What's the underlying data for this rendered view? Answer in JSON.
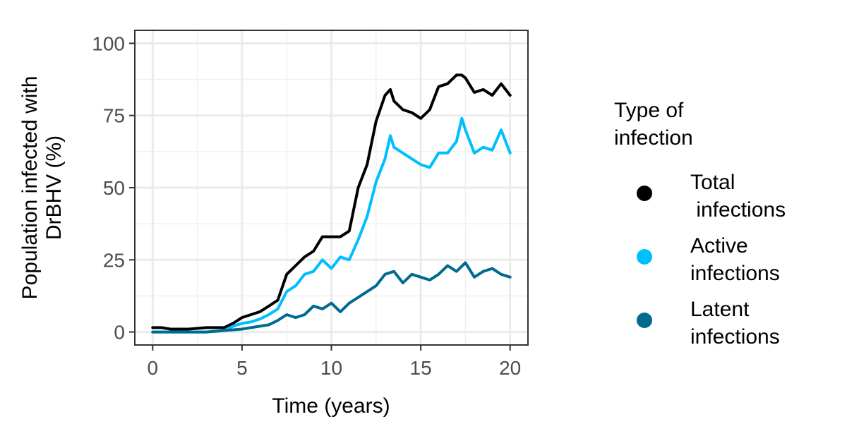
{
  "chart_data": {
    "type": "line",
    "xlabel": "Time (years)",
    "ylabel_lines": [
      "Population infected with",
      "DrBHV (%)"
    ],
    "xlim": [
      -1,
      21
    ],
    "ylim": [
      -4.5,
      104.5
    ],
    "x_ticks": [
      0,
      5,
      10,
      15,
      20
    ],
    "y_ticks": [
      0,
      25,
      50,
      75,
      100
    ],
    "x_tick_labels": [
      "0",
      "5",
      "10",
      "15",
      "20"
    ],
    "y_tick_labels": [
      "0",
      "25",
      "50",
      "75",
      "100"
    ],
    "grid": true,
    "legend": {
      "title_lines": [
        "Type of",
        "infection"
      ],
      "placement": "right"
    },
    "series": [
      {
        "key": "total",
        "label_lines": [
          "Total",
          " infections"
        ],
        "color": "#000000",
        "points": [
          [
            0,
            1.5
          ],
          [
            0.5,
            1.5
          ],
          [
            1,
            1
          ],
          [
            2,
            1
          ],
          [
            3,
            1.5
          ],
          [
            4,
            1.5
          ],
          [
            4.5,
            3
          ],
          [
            5,
            5
          ],
          [
            5.5,
            6
          ],
          [
            6,
            7
          ],
          [
            6.5,
            9
          ],
          [
            7,
            11
          ],
          [
            7.5,
            20
          ],
          [
            8,
            23
          ],
          [
            8.5,
            26
          ],
          [
            9,
            28
          ],
          [
            9.5,
            33
          ],
          [
            10,
            33
          ],
          [
            10.5,
            33
          ],
          [
            11,
            35
          ],
          [
            11.5,
            50
          ],
          [
            12,
            58
          ],
          [
            12.5,
            73
          ],
          [
            13,
            82
          ],
          [
            13.3,
            84
          ],
          [
            13.5,
            80
          ],
          [
            14,
            77
          ],
          [
            14.5,
            76
          ],
          [
            15,
            74
          ],
          [
            15.5,
            77
          ],
          [
            16,
            85
          ],
          [
            16.5,
            86
          ],
          [
            17,
            89
          ],
          [
            17.3,
            89
          ],
          [
            17.5,
            88
          ],
          [
            18,
            83
          ],
          [
            18.5,
            84
          ],
          [
            19,
            82
          ],
          [
            19.5,
            86
          ],
          [
            20,
            82
          ]
        ]
      },
      {
        "key": "active",
        "label_lines": [
          "Active",
          "infections"
        ],
        "color": "#00bfff",
        "points": [
          [
            0,
            0
          ],
          [
            1,
            0
          ],
          [
            2,
            0
          ],
          [
            3,
            0
          ],
          [
            4,
            0.5
          ],
          [
            4.5,
            2
          ],
          [
            5,
            3
          ],
          [
            5.5,
            3.5
          ],
          [
            6,
            4.5
          ],
          [
            6.5,
            6
          ],
          [
            7,
            8
          ],
          [
            7.5,
            14
          ],
          [
            8,
            16
          ],
          [
            8.5,
            20
          ],
          [
            9,
            21
          ],
          [
            9.5,
            25
          ],
          [
            10,
            22
          ],
          [
            10.5,
            26
          ],
          [
            11,
            25
          ],
          [
            11.5,
            32
          ],
          [
            12,
            40
          ],
          [
            12.5,
            52
          ],
          [
            13,
            60
          ],
          [
            13.3,
            68
          ],
          [
            13.5,
            64
          ],
          [
            14,
            62
          ],
          [
            14.5,
            60
          ],
          [
            15,
            58
          ],
          [
            15.5,
            57
          ],
          [
            16,
            62
          ],
          [
            16.5,
            62
          ],
          [
            17,
            66
          ],
          [
            17.3,
            74
          ],
          [
            17.5,
            70
          ],
          [
            18,
            62
          ],
          [
            18.5,
            64
          ],
          [
            19,
            63
          ],
          [
            19.5,
            70
          ],
          [
            20,
            62
          ]
        ]
      },
      {
        "key": "latent",
        "label_lines": [
          "Latent",
          "infections"
        ],
        "color": "#006b8f",
        "points": [
          [
            0,
            0
          ],
          [
            1,
            0
          ],
          [
            2,
            0
          ],
          [
            3,
            0
          ],
          [
            4,
            0.5
          ],
          [
            5,
            1
          ],
          [
            5.5,
            1.5
          ],
          [
            6,
            2
          ],
          [
            6.5,
            2.5
          ],
          [
            7,
            4
          ],
          [
            7.5,
            6
          ],
          [
            8,
            5
          ],
          [
            8.5,
            6
          ],
          [
            9,
            9
          ],
          [
            9.5,
            8
          ],
          [
            10,
            10
          ],
          [
            10.5,
            7
          ],
          [
            11,
            10
          ],
          [
            11.5,
            12
          ],
          [
            12,
            14
          ],
          [
            12.5,
            16
          ],
          [
            13,
            20
          ],
          [
            13.5,
            21
          ],
          [
            14,
            17
          ],
          [
            14.5,
            20
          ],
          [
            15,
            19
          ],
          [
            15.5,
            18
          ],
          [
            16,
            20
          ],
          [
            16.5,
            23
          ],
          [
            17,
            21
          ],
          [
            17.5,
            24
          ],
          [
            18,
            19
          ],
          [
            18.5,
            21
          ],
          [
            19,
            22
          ],
          [
            19.5,
            20
          ],
          [
            20,
            19
          ]
        ]
      }
    ]
  }
}
